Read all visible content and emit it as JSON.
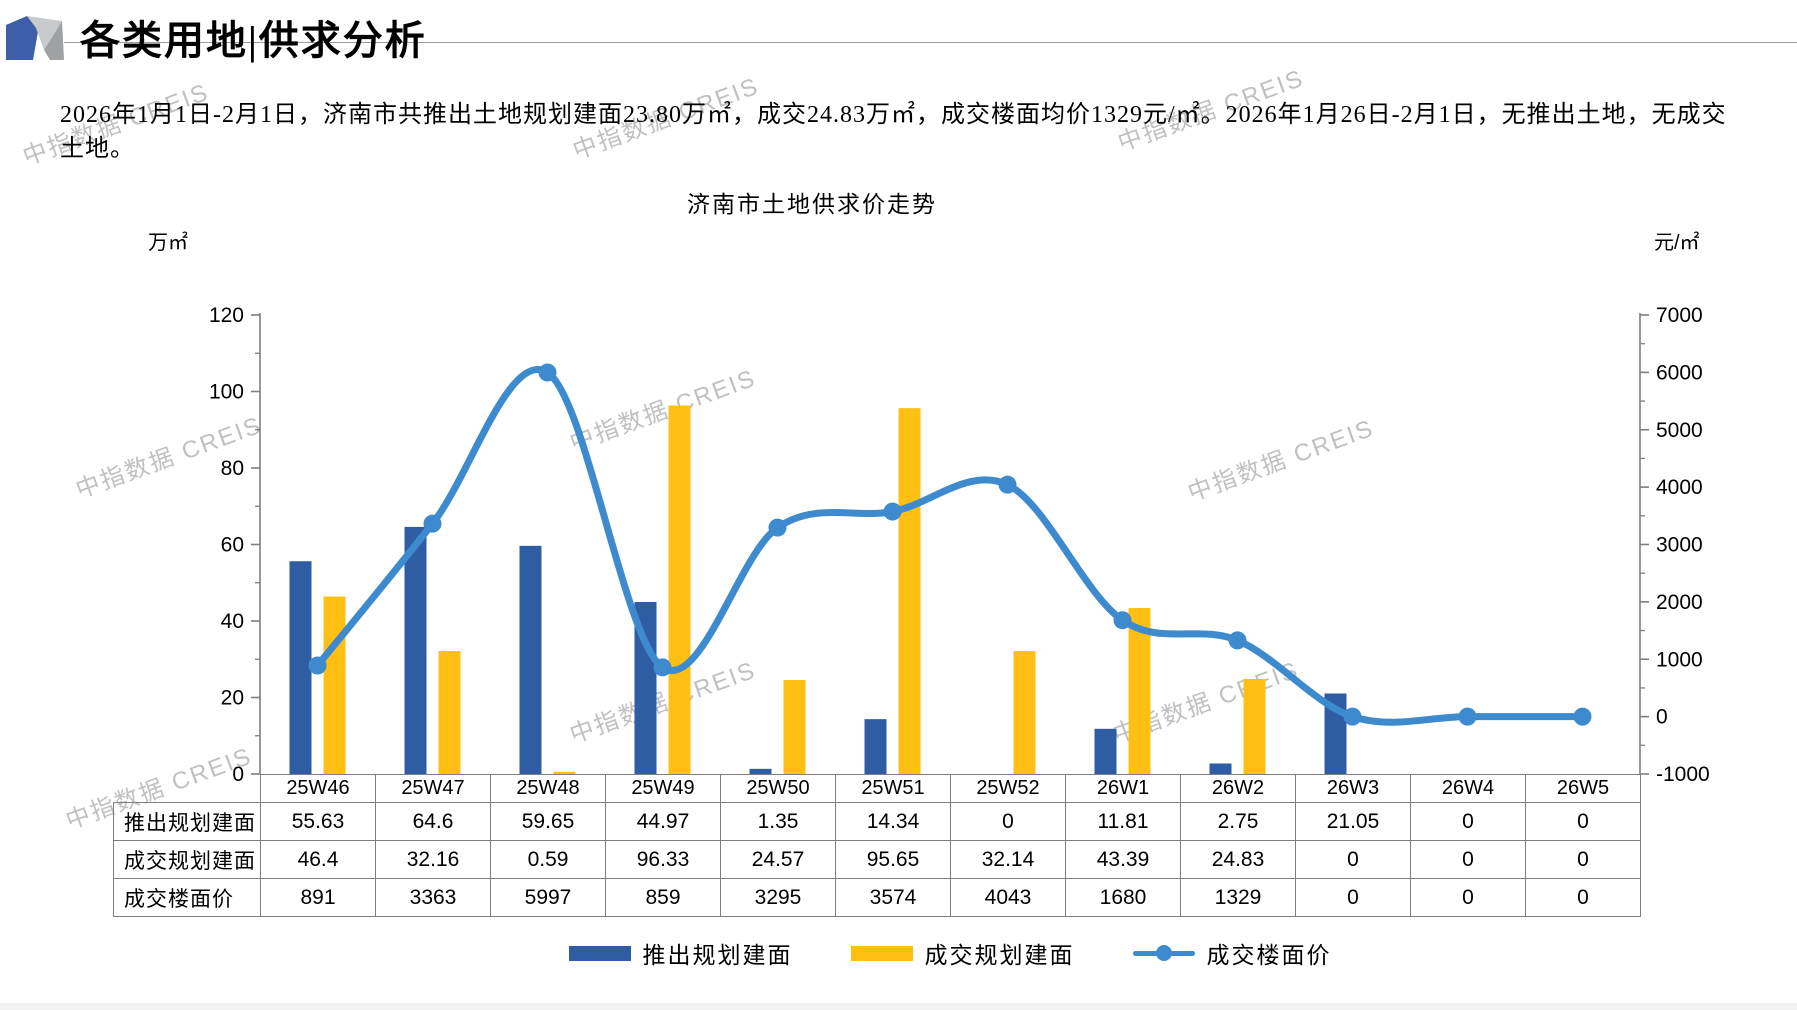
{
  "header": {
    "title": "各类用地|供求分析"
  },
  "summary": "2026年1月1日-2月1日，济南市共推出土地规划建面23.80万㎡，成交24.83万㎡，成交楼面均价1329元/㎡。2026年1月26日-2月1日，无推出土地，无成交土地。",
  "watermark": "中指数据 CREIS",
  "chart_data": {
    "type": "combo",
    "title": "济南市土地供求价走势",
    "categories": [
      "25W46",
      "25W47",
      "25W48",
      "25W49",
      "25W50",
      "25W51",
      "25W52",
      "26W1",
      "26W2",
      "26W3",
      "26W4",
      "26W5"
    ],
    "series": [
      {
        "name": "推出规划建面",
        "type": "bar",
        "axis": "left",
        "color": "#2E5DA4",
        "values": [
          55.63,
          64.6,
          59.65,
          44.97,
          1.35,
          14.34,
          0,
          11.81,
          2.75,
          21.05,
          0,
          0
        ]
      },
      {
        "name": "成交规划建面",
        "type": "bar",
        "axis": "left",
        "color": "#FFC013",
        "values": [
          46.4,
          32.16,
          0.59,
          96.33,
          24.57,
          95.65,
          32.14,
          43.39,
          24.83,
          0,
          0,
          0
        ]
      },
      {
        "name": "成交楼面价",
        "type": "line",
        "axis": "right",
        "color": "#3D8BCE",
        "values": [
          891,
          3363,
          5997,
          859,
          3295,
          3574,
          4043,
          1680,
          1329,
          0,
          0,
          0
        ]
      }
    ],
    "left_axis": {
      "unit": "万㎡",
      "min": 0,
      "max": 120,
      "step": 20,
      "ticks": [
        "120",
        "100",
        "80",
        "60",
        "40",
        "20",
        "0"
      ]
    },
    "right_axis": {
      "unit": "元/㎡",
      "min": -1000,
      "max": 7000,
      "step": 1000,
      "ticks": [
        "7000",
        "6000",
        "5000",
        "4000",
        "3000",
        "2000",
        "1000",
        "0",
        "-1000"
      ]
    },
    "grid": false,
    "legend_position": "bottom"
  },
  "table": {
    "row_headers": [
      "推出规划建面",
      "成交规划建面",
      "成交楼面价"
    ],
    "columns": [
      "25W46",
      "25W47",
      "25W48",
      "25W49",
      "25W50",
      "25W51",
      "25W52",
      "26W1",
      "26W2",
      "26W3",
      "26W4",
      "26W5"
    ],
    "rows": [
      [
        "55.63",
        "64.6",
        "59.65",
        "44.97",
        "1.35",
        "14.34",
        "0",
        "11.81",
        "2.75",
        "21.05",
        "0",
        "0"
      ],
      [
        "46.4",
        "32.16",
        "0.59",
        "96.33",
        "24.57",
        "95.65",
        "32.14",
        "43.39",
        "24.83",
        "0",
        "0",
        "0"
      ],
      [
        "891",
        "3363",
        "5997",
        "859",
        "3295",
        "3574",
        "4043",
        "1680",
        "1329",
        "0",
        "0",
        "0"
      ]
    ]
  },
  "colors": {
    "bar_blue": "#2E5DA4",
    "bar_yellow": "#FFC013",
    "line_blue": "#3D8BCE",
    "axis_gray": "#7f7f7f",
    "logo_blue": "#3F5EA8",
    "logo_gray_light": "#C9CACC",
    "logo_gray_dark": "#9FA1A3"
  }
}
